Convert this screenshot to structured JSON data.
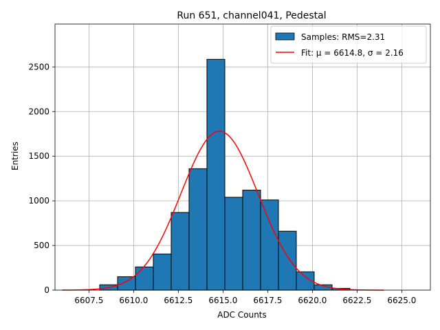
{
  "chart_data": {
    "type": "bar",
    "title": "Run 651, channel041, Pedestal",
    "xlabel": "ADC Counts",
    "ylabel": "Entries",
    "xlim": [
      6605.6,
      6626.6
    ],
    "ylim": [
      0,
      2980
    ],
    "xticks": [
      6607.5,
      6610.0,
      6612.5,
      6615.0,
      6617.5,
      6620.0,
      6622.5,
      6625.0
    ],
    "xtick_labels": [
      "6607.5",
      "6610.0",
      "6612.5",
      "6615.0",
      "6617.5",
      "6620.0",
      "6622.5",
      "6625.0"
    ],
    "yticks": [
      0,
      500,
      1000,
      1500,
      2000,
      2500
    ],
    "ytick_labels": [
      "0",
      "500",
      "1000",
      "1500",
      "2000",
      "2500"
    ],
    "grid": true,
    "legend_position": "top-right",
    "histogram": {
      "name": "Samples: RMS=2.31",
      "color": "#1f77b4",
      "edgecolor": "#000000",
      "bins": [
        {
          "left": 6608.1,
          "right": 6609.1,
          "value": 60
        },
        {
          "left": 6609.1,
          "right": 6610.1,
          "value": 150
        },
        {
          "left": 6610.1,
          "right": 6611.1,
          "value": 260
        },
        {
          "left": 6611.1,
          "right": 6612.1,
          "value": 405
        },
        {
          "left": 6612.1,
          "right": 6613.1,
          "value": 870
        },
        {
          "left": 6613.1,
          "right": 6614.1,
          "value": 1360
        },
        {
          "left": 6614.1,
          "right": 6615.1,
          "value": 2585
        },
        {
          "left": 6615.1,
          "right": 6616.1,
          "value": 1040
        },
        {
          "left": 6616.1,
          "right": 6617.1,
          "value": 1120
        },
        {
          "left": 6617.1,
          "right": 6618.1,
          "value": 1010
        },
        {
          "left": 6618.1,
          "right": 6619.1,
          "value": 660
        },
        {
          "left": 6619.1,
          "right": 6620.1,
          "value": 205
        },
        {
          "left": 6620.1,
          "right": 6621.1,
          "value": 60
        },
        {
          "left": 6621.1,
          "right": 6622.1,
          "value": 20
        }
      ]
    },
    "fit": {
      "name": "Fit: μ = 6614.8, σ = 2.16",
      "color": "#ff0000",
      "mu": 6614.8,
      "sigma": 2.16,
      "amplitude": 1780,
      "x_range": [
        6606.0,
        6624.0
      ]
    }
  }
}
